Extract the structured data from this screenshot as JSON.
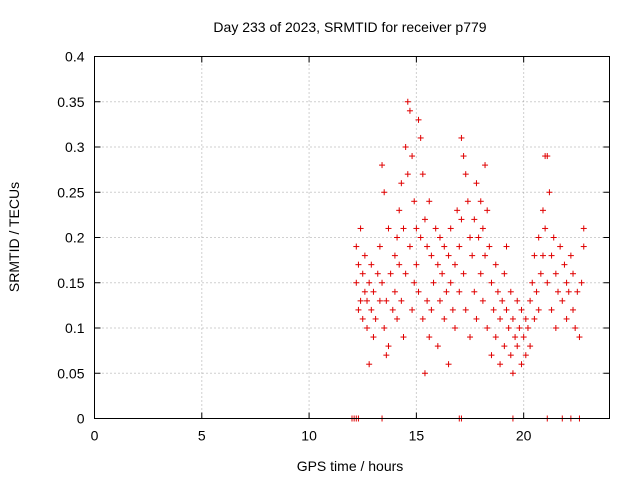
{
  "chart_data": {
    "type": "scatter",
    "title": "Day 233 of 2023, SRMTID for receiver p779",
    "xlabel": "GPS time / hours",
    "ylabel": "SRMTID / TECUs",
    "xlim": [
      0,
      24
    ],
    "ylim": [
      0,
      0.4
    ],
    "x_ticks": [
      0,
      5,
      10,
      15,
      20
    ],
    "x_tick_labels": [
      "0",
      "5",
      "10",
      "15",
      "20"
    ],
    "y_ticks": [
      0,
      0.05,
      0.1,
      0.15,
      0.2,
      0.25,
      0.3,
      0.35,
      0.4
    ],
    "y_tick_labels": [
      "0",
      "0.05",
      "0.1",
      "0.15",
      "0.2",
      "0.25",
      "0.3",
      "0.35",
      "0.4"
    ],
    "grid": true,
    "marker": "+",
    "color": "#e00000",
    "series": [
      {
        "name": "SRMTID",
        "points": [
          [
            12.2,
            0.19
          ],
          [
            12.2,
            0.15
          ],
          [
            12.3,
            0.12
          ],
          [
            12.3,
            0.17
          ],
          [
            12.4,
            0.13
          ],
          [
            12.4,
            0.21
          ],
          [
            12.5,
            0.16
          ],
          [
            12.5,
            0.11
          ],
          [
            12.6,
            0.14
          ],
          [
            12.6,
            0.18
          ],
          [
            12.7,
            0.1
          ],
          [
            12.7,
            0.13
          ],
          [
            12.8,
            0.06
          ],
          [
            12.8,
            0.15
          ],
          [
            12.9,
            0.12
          ],
          [
            12.9,
            0.17
          ],
          [
            13.0,
            0.09
          ],
          [
            13.0,
            0.14
          ],
          [
            13.1,
            0.11
          ],
          [
            13.2,
            0.16
          ],
          [
            13.3,
            0.13
          ],
          [
            13.3,
            0.19
          ],
          [
            13.4,
            0.28
          ],
          [
            13.4,
            0.15
          ],
          [
            13.5,
            0.25
          ],
          [
            13.5,
            0.1
          ],
          [
            13.6,
            0.07
          ],
          [
            13.6,
            0.13
          ],
          [
            13.7,
            0.08
          ],
          [
            13.7,
            0.21
          ],
          [
            13.8,
            0.16
          ],
          [
            13.9,
            0.12
          ],
          [
            14.0,
            0.18
          ],
          [
            14.0,
            0.14
          ],
          [
            14.1,
            0.2
          ],
          [
            14.1,
            0.11
          ],
          [
            14.2,
            0.23
          ],
          [
            14.2,
            0.17
          ],
          [
            14.3,
            0.26
          ],
          [
            14.3,
            0.13
          ],
          [
            14.4,
            0.21
          ],
          [
            14.4,
            0.09
          ],
          [
            14.5,
            0.3
          ],
          [
            14.5,
            0.16
          ],
          [
            14.6,
            0.35
          ],
          [
            14.6,
            0.27
          ],
          [
            14.7,
            0.34
          ],
          [
            14.7,
            0.19
          ],
          [
            14.8,
            0.29
          ],
          [
            14.8,
            0.12
          ],
          [
            14.9,
            0.24
          ],
          [
            14.9,
            0.15
          ],
          [
            15.0,
            0.21
          ],
          [
            15.0,
            0.17
          ],
          [
            15.1,
            0.33
          ],
          [
            15.1,
            0.14
          ],
          [
            15.2,
            0.31
          ],
          [
            15.2,
            0.2
          ],
          [
            15.3,
            0.27
          ],
          [
            15.3,
            0.11
          ],
          [
            15.4,
            0.22
          ],
          [
            15.4,
            0.05
          ],
          [
            15.5,
            0.19
          ],
          [
            15.5,
            0.13
          ],
          [
            15.6,
            0.24
          ],
          [
            15.6,
            0.09
          ],
          [
            15.7,
            0.18
          ],
          [
            15.7,
            0.12
          ],
          [
            15.8,
            0.15
          ],
          [
            15.9,
            0.21
          ],
          [
            16.0,
            0.17
          ],
          [
            16.0,
            0.08
          ],
          [
            16.1,
            0.2
          ],
          [
            16.1,
            0.13
          ],
          [
            16.2,
            0.16
          ],
          [
            16.3,
            0.11
          ],
          [
            16.3,
            0.19
          ],
          [
            16.4,
            0.14
          ],
          [
            16.5,
            0.18
          ],
          [
            16.5,
            0.06
          ],
          [
            16.6,
            0.21
          ],
          [
            16.6,
            0.15
          ],
          [
            16.7,
            0.12
          ],
          [
            16.8,
            0.17
          ],
          [
            16.8,
            0.1
          ],
          [
            16.9,
            0.23
          ],
          [
            17.0,
            0.19
          ],
          [
            17.0,
            0.14
          ],
          [
            17.1,
            0.31
          ],
          [
            17.1,
            0.22
          ],
          [
            17.2,
            0.29
          ],
          [
            17.2,
            0.16
          ],
          [
            17.3,
            0.27
          ],
          [
            17.3,
            0.12
          ],
          [
            17.4,
            0.24
          ],
          [
            17.5,
            0.2
          ],
          [
            17.5,
            0.09
          ],
          [
            17.6,
            0.18
          ],
          [
            17.7,
            0.22
          ],
          [
            17.7,
            0.14
          ],
          [
            17.8,
            0.26
          ],
          [
            17.8,
            0.11
          ],
          [
            17.9,
            0.2
          ],
          [
            18.0,
            0.24
          ],
          [
            18.0,
            0.16
          ],
          [
            18.1,
            0.21
          ],
          [
            18.1,
            0.13
          ],
          [
            18.2,
            0.28
          ],
          [
            18.2,
            0.18
          ],
          [
            18.3,
            0.23
          ],
          [
            18.3,
            0.1
          ],
          [
            18.4,
            0.19
          ],
          [
            18.5,
            0.15
          ],
          [
            18.5,
            0.07
          ],
          [
            18.6,
            0.12
          ],
          [
            18.7,
            0.17
          ],
          [
            18.7,
            0.09
          ],
          [
            18.8,
            0.14
          ],
          [
            18.9,
            0.11
          ],
          [
            18.9,
            0.06
          ],
          [
            19.0,
            0.13
          ],
          [
            19.1,
            0.16
          ],
          [
            19.1,
            0.08
          ],
          [
            19.2,
            0.19
          ],
          [
            19.2,
            0.12
          ],
          [
            19.3,
            0.1
          ],
          [
            19.4,
            0.14
          ],
          [
            19.4,
            0.07
          ],
          [
            19.5,
            0.11
          ],
          [
            19.5,
            0.05
          ],
          [
            19.6,
            0.09
          ],
          [
            19.7,
            0.13
          ],
          [
            19.7,
            0.08
          ],
          [
            19.8,
            0.1
          ],
          [
            19.9,
            0.12
          ],
          [
            19.9,
            0.06
          ],
          [
            20.0,
            0.09
          ],
          [
            20.1,
            0.11
          ],
          [
            20.1,
            0.07
          ],
          [
            20.2,
            0.1
          ],
          [
            20.3,
            0.13
          ],
          [
            20.3,
            0.08
          ],
          [
            20.4,
            0.15
          ],
          [
            20.5,
            0.11
          ],
          [
            20.5,
            0.18
          ],
          [
            20.6,
            0.14
          ],
          [
            20.7,
            0.2
          ],
          [
            20.7,
            0.12
          ],
          [
            20.8,
            0.16
          ],
          [
            20.9,
            0.23
          ],
          [
            20.9,
            0.18
          ],
          [
            21.0,
            0.29
          ],
          [
            21.0,
            0.21
          ],
          [
            21.1,
            0.29
          ],
          [
            21.1,
            0.15
          ],
          [
            21.2,
            0.25
          ],
          [
            21.3,
            0.18
          ],
          [
            21.3,
            0.12
          ],
          [
            21.4,
            0.2
          ],
          [
            21.5,
            0.16
          ],
          [
            21.5,
            0.1
          ],
          [
            21.6,
            0.14
          ],
          [
            21.7,
            0.19
          ],
          [
            21.8,
            0.13
          ],
          [
            21.9,
            0.17
          ],
          [
            22.0,
            0.11
          ],
          [
            22.0,
            0.15
          ],
          [
            22.1,
            0.14
          ],
          [
            22.2,
            0.18
          ],
          [
            22.3,
            0.12
          ],
          [
            22.3,
            0.16
          ],
          [
            22.4,
            0.1
          ],
          [
            22.5,
            0.14
          ],
          [
            22.6,
            0.09
          ],
          [
            22.7,
            0.15
          ],
          [
            22.8,
            0.21
          ],
          [
            22.8,
            0.19
          ]
        ]
      }
    ],
    "zero_markers_x": [
      12.0,
      12.1,
      12.2,
      12.3,
      13.4,
      17.0,
      17.1,
      19.5,
      21.1,
      21.8,
      22.2,
      22.6
    ]
  }
}
